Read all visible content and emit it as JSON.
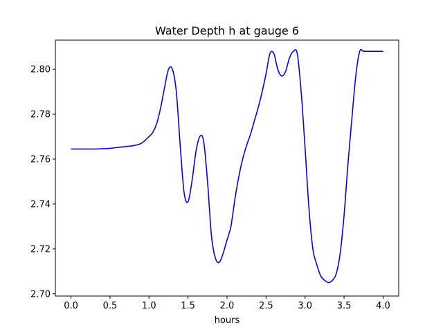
{
  "chart_data": {
    "type": "line",
    "title": "Water Depth h at gauge 6",
    "xlabel": "hours",
    "ylabel": "",
    "xlim": [
      -0.2,
      4.2
    ],
    "ylim": [
      2.699,
      2.813
    ],
    "xticks": [
      0.0,
      0.5,
      1.0,
      1.5,
      2.0,
      2.5,
      3.0,
      3.5,
      4.0
    ],
    "xtick_labels": [
      "0.0",
      "0.5",
      "1.0",
      "1.5",
      "2.0",
      "2.5",
      "3.0",
      "3.5",
      "4.0"
    ],
    "yticks": [
      2.7,
      2.72,
      2.74,
      2.76,
      2.78,
      2.8
    ],
    "ytick_labels": [
      "2.70",
      "2.72",
      "2.74",
      "2.76",
      "2.78",
      "2.80"
    ],
    "grid": false,
    "legend": "none",
    "series": [
      {
        "color": "#0000ff",
        "x": [
          0.0,
          0.1,
          0.2,
          0.3,
          0.4,
          0.5,
          0.6,
          0.7,
          0.8,
          0.9,
          1.0,
          1.05,
          1.1,
          1.15,
          1.2,
          1.25,
          1.3,
          1.35,
          1.4,
          1.45,
          1.5,
          1.55,
          1.6,
          1.65,
          1.7,
          1.75,
          1.8,
          1.85,
          1.9,
          1.95,
          2.0,
          2.05,
          2.1,
          2.15,
          2.2,
          2.25,
          2.3,
          2.35,
          2.4,
          2.45,
          2.5,
          2.55,
          2.6,
          2.65,
          2.7,
          2.75,
          2.8,
          2.85,
          2.9,
          2.95,
          3.0,
          3.05,
          3.1,
          3.15,
          3.2,
          3.25,
          3.3,
          3.35,
          3.4,
          3.45,
          3.5,
          3.55,
          3.6,
          3.65,
          3.7,
          3.75,
          3.8,
          3.85,
          3.9,
          3.95,
          4.0
        ],
        "y": [
          2.7645,
          2.7645,
          2.7645,
          2.7645,
          2.7646,
          2.7648,
          2.7652,
          2.7656,
          2.766,
          2.767,
          2.77,
          2.772,
          2.776,
          2.783,
          2.792,
          2.8,
          2.8,
          2.79,
          2.766,
          2.745,
          2.741,
          2.75,
          2.763,
          2.77,
          2.768,
          2.75,
          2.726,
          2.716,
          2.714,
          2.718,
          2.724,
          2.73,
          2.742,
          2.752,
          2.76,
          2.766,
          2.771,
          2.777,
          2.783,
          2.79,
          2.798,
          2.807,
          2.807,
          2.8,
          2.797,
          2.799,
          2.805,
          2.808,
          2.807,
          2.79,
          2.765,
          2.738,
          2.72,
          2.713,
          2.708,
          2.706,
          2.705,
          2.706,
          2.709,
          2.718,
          2.735,
          2.758,
          2.778,
          2.797,
          2.808,
          2.808,
          2.808,
          2.808,
          2.808,
          2.808,
          2.808
        ]
      }
    ]
  }
}
